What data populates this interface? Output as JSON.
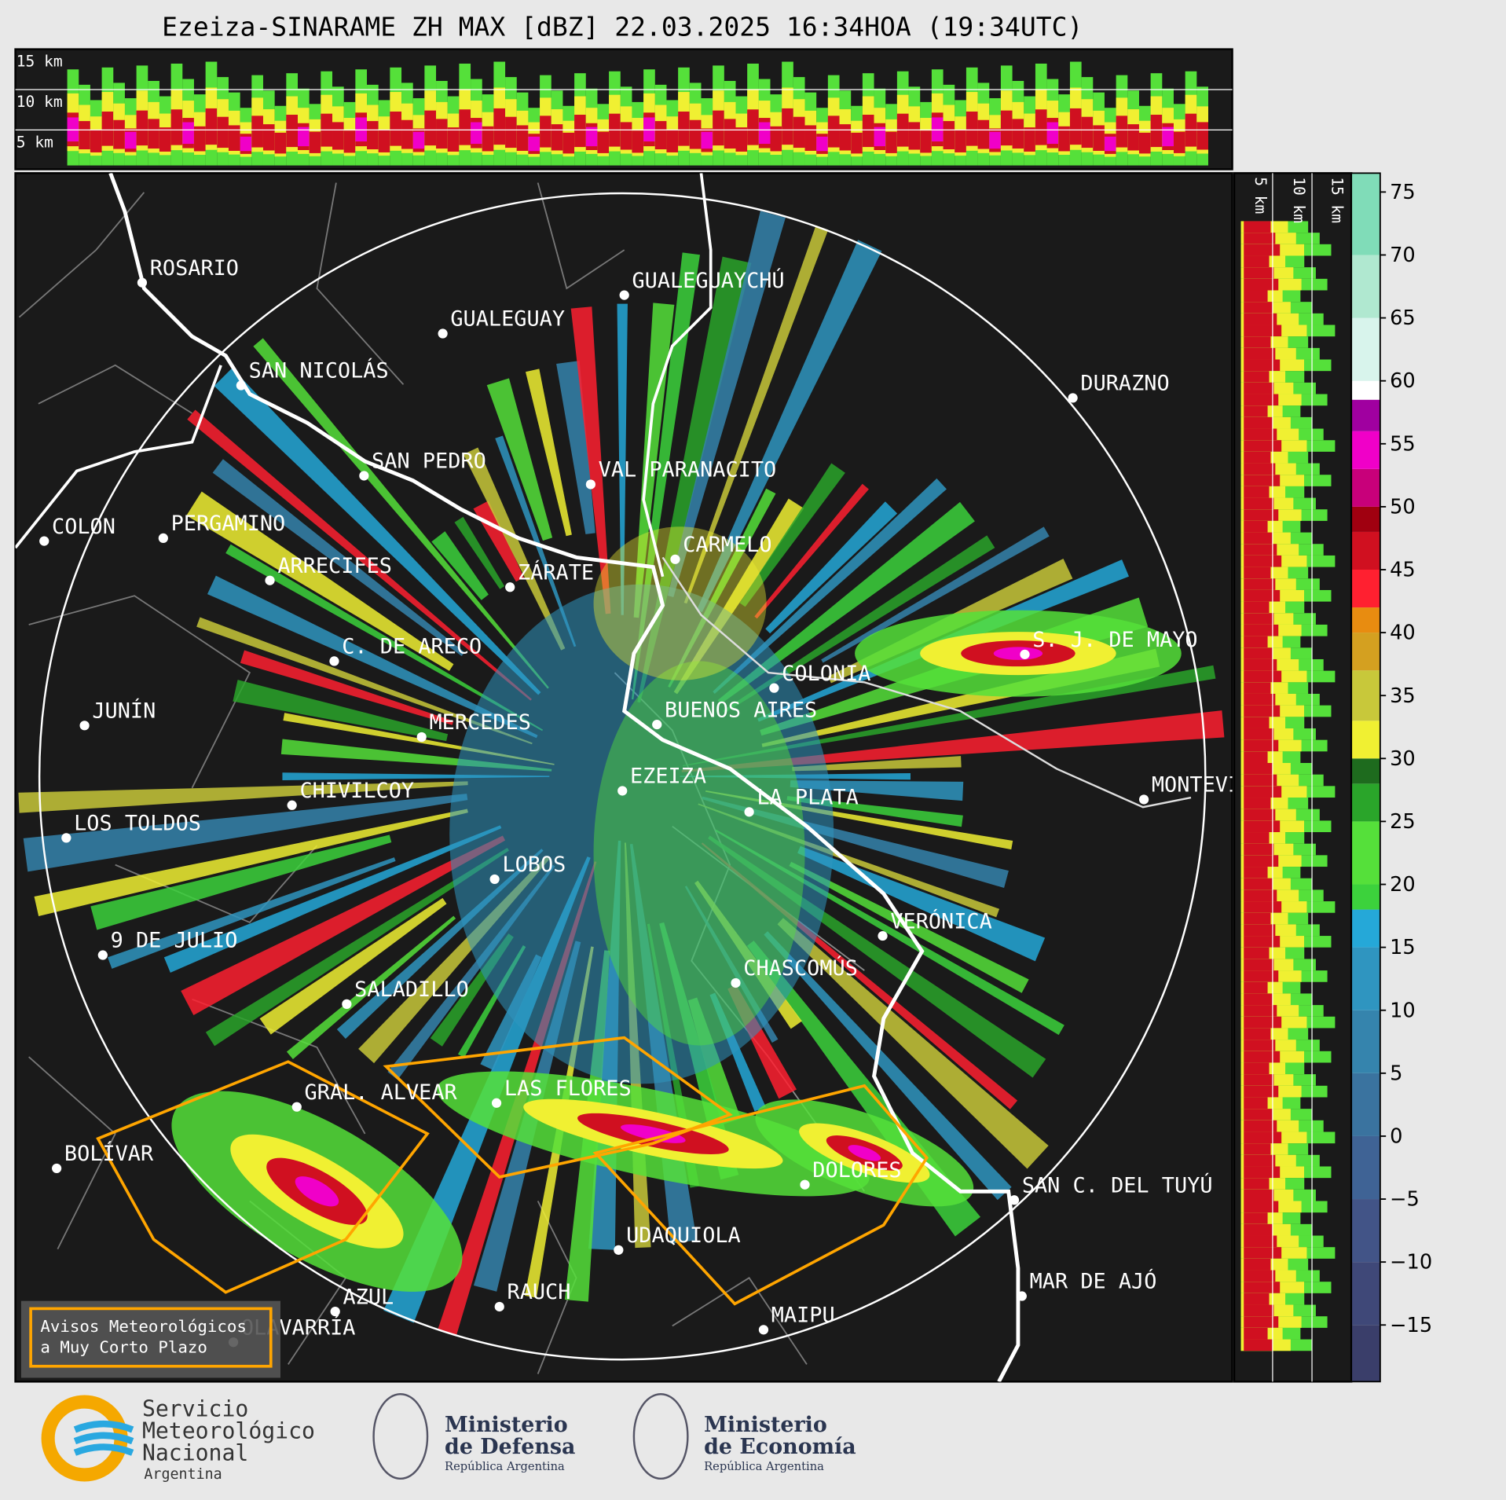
{
  "title": "Ezeiza-SINARAME ZH MAX [dBZ] 22.03.2025 16:34HOA (19:34UTC)",
  "profile_top": {
    "labels": [
      "15 km",
      "10 km",
      "5 km"
    ]
  },
  "profile_right": {
    "labels": [
      "5 km",
      "10 km",
      "15 km"
    ]
  },
  "colorbar": {
    "lim": [
      -19.5,
      76.5
    ],
    "ticks": [
      {
        "value": -15,
        "label": "−15"
      },
      {
        "value": -10,
        "label": "−10"
      },
      {
        "value": -5,
        "label": "−5"
      },
      0,
      5,
      10,
      15,
      20,
      25,
      30,
      35,
      40,
      45,
      50,
      55,
      60,
      65,
      70,
      75
    ],
    "bounds": [
      -20,
      -15,
      -10,
      -5,
      0,
      5,
      10,
      15,
      18,
      20,
      25,
      28,
      30,
      33,
      37,
      40,
      42,
      45,
      48,
      50,
      53,
      56,
      58.5,
      60,
      65,
      70,
      77
    ],
    "colors": [
      "#3a3e6a",
      "#3f4878",
      "#425487",
      "#3f6395",
      "#3a739f",
      "#3584ad",
      "#2f95c0",
      "#25a8d8",
      "#3cd23c",
      "#55e03a",
      "#2aa52a",
      "#1e6b1e",
      "#f0f032",
      "#c8c83a",
      "#d4a020",
      "#e88c10",
      "#ff2030",
      "#d01020",
      "#a00010",
      "#c8007a",
      "#f000c8",
      "#a000a0",
      "#ffffff",
      "#d8f4ec",
      "#b0e8d0",
      "#80dcb8"
    ]
  },
  "cities": [
    "ROSARIO",
    "GUALEGUAYCHÚ",
    "GUALEGUAY",
    "SAN NICOLÁS",
    "DURAZNO",
    "SAN PEDRO",
    "VAL PARANACITO",
    "COLON",
    "PERGAMINO",
    "CARMELO",
    "ARRECIFES",
    "ZÁRATE",
    "C. DE ARECO",
    "S. J. DE MAYO",
    "COLONIA",
    "BUENOS AIRES",
    "JUNÍN",
    "MERCEDES",
    "EZEIZA",
    "CHIVILCOY",
    "MONTEVIDEO",
    "LA PLATA",
    "LOS TOLDOS",
    "LOBOS",
    "VERÓNICA",
    "9 DE JULIO",
    "CHASCOMÚS",
    "SALADILLO",
    "GRAL. ALVEAR",
    "LAS FLORES",
    "BOLÍVAR",
    "DOLORES",
    "SAN C. DEL TUYÚ",
    "UDAQUIOLA",
    "RAUCH",
    "AZUL",
    "MAR DE AJÓ",
    "OLAVARRÍA",
    "MAIPU"
  ],
  "legend": [
    "Avisos Meteorológicos",
    "a Muy Corto Plazo"
  ],
  "logos": {
    "smn": [
      "Servicio",
      "Meteorológico",
      "Nacional",
      "Argentina"
    ],
    "defensa": [
      "Ministerio",
      "de Defensa",
      "República Argentina"
    ],
    "economia": [
      "Ministerio",
      "de Economía",
      "República Argentina"
    ]
  }
}
